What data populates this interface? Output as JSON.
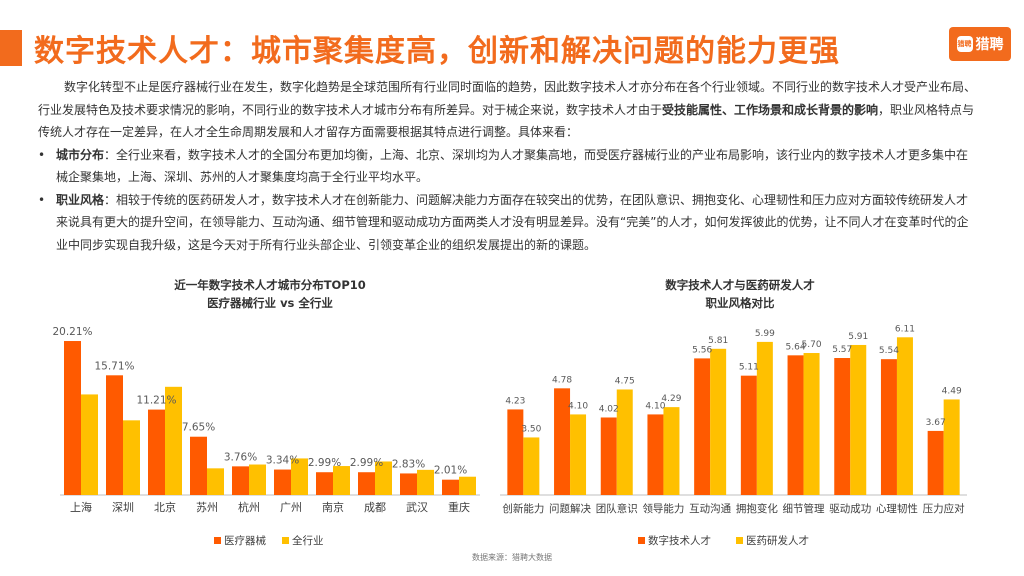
{
  "header": {
    "title": "数字技术人才：城市聚集度高，创新和解决问题的能力更强",
    "logo_text": "猎聘",
    "logo_icon_text": "猎聘"
  },
  "body_text": {
    "p1_a": "数字化转型不止是医疗器械行业在发生，数字化趋势是全球范围所有行业同时面临的趋势，因此数字技术人才亦分布在各个行业领域。不同行业的数字技术人才受产业布局、行业发展特色及技术要求情况的影响，不同行业的数字技术人才城市分布有所差异。对于械企来说，数字技术人才由于",
    "p1_bold": "受技能属性、工作场景和成长背景的影响",
    "p1_b": "，职业风格特点与传统人才存在一定差异，在人才全生命周期发展和人才留存方面需要根据其特点进行调整。具体来看：",
    "bullet1_label": "城市分布",
    "bullet1_text": "：全行业来看，数字技术人才的全国分布更加均衡，上海、北京、深圳均为人才聚集高地，而受医疗器械行业的产业布局影响，该行业内的数字技术人才更多集中在械企聚集地，上海、深圳、苏州的人才聚集度均高于全行业平均水平。",
    "bullet2_label": "职业风格",
    "bullet2_text": "：相较于传统的医药研发人才，数字技术人才在创新能力、问题解决能力方面存在较突出的优势，在团队意识、拥抱变化、心理韧性和压力应对方面较传统研发人才来说具有更大的提升空间，在领导能力、互动沟通、细节管理和驱动成功方面两类人才没有明显差异。没有“完美”的人才，如何发挥彼此的优势，让不同人才在变革时代的企业中同步实现自我升级，这是今天对于所有行业头部企业、引领变革企业的组织发展提出的新的课题。"
  },
  "colors": {
    "orange": "#ff5a00",
    "yellow": "#ffc000",
    "brand": "#f26b1d"
  },
  "chart_data": [
    {
      "type": "bar",
      "title_line1": "近一年数字技术人才城市分布TOP10",
      "title_line2": "医疗器械行业 vs 全行业",
      "categories": [
        "上海",
        "深圳",
        "北京",
        "苏州",
        "杭州",
        "广州",
        "南京",
        "成都",
        "武汉",
        "重庆"
      ],
      "series": [
        {
          "name": "医疗器械",
          "values": [
            20.21,
            15.71,
            11.21,
            7.65,
            3.76,
            3.34,
            2.99,
            2.99,
            2.83,
            2.01
          ]
        },
        {
          "name": "全行业",
          "values": [
            13.2,
            9.8,
            14.2,
            3.5,
            4.0,
            4.8,
            3.8,
            4.4,
            3.3,
            2.4
          ]
        }
      ],
      "labels": [
        "20.21%",
        "15.71%",
        "11.21%",
        "7.65%",
        "3.76%",
        "3.34%",
        "2.99%",
        "2.99%",
        "2.83%",
        "2.01%"
      ],
      "ylim": [
        0,
        21
      ]
    },
    {
      "type": "bar",
      "title_line1": "数字技术人才与医药研发人才",
      "title_line2": "职业风格对比",
      "categories": [
        "创新能力",
        "问题解决",
        "团队意识",
        "领导能力",
        "互动沟通",
        "拥抱变化",
        "细节管理",
        "驱动成功",
        "心理韧性",
        "压力应对"
      ],
      "series": [
        {
          "name": "数字技术人才",
          "values": [
            4.23,
            4.78,
            4.02,
            4.1,
            5.56,
            5.11,
            5.64,
            5.57,
            5.54,
            3.67
          ]
        },
        {
          "name": "医药研发人才",
          "values": [
            3.5,
            4.1,
            4.75,
            4.29,
            5.81,
            5.99,
            5.7,
            5.91,
            6.11,
            4.49
          ]
        }
      ],
      "labels_a": [
        "4.23",
        "4.78",
        "4.02",
        "4.10",
        "5.56",
        "5.11",
        "5.64",
        "5.57",
        "5.54",
        "3.67"
      ],
      "labels_b": [
        "3.50",
        "4.10",
        "4.75",
        "4.29",
        "5.81",
        "5.99",
        "5.70",
        "5.91",
        "6.11",
        "4.49"
      ],
      "ylim": [
        2,
        6.3
      ]
    }
  ],
  "footer": {
    "source": "数据来源：猎聘大数据"
  }
}
